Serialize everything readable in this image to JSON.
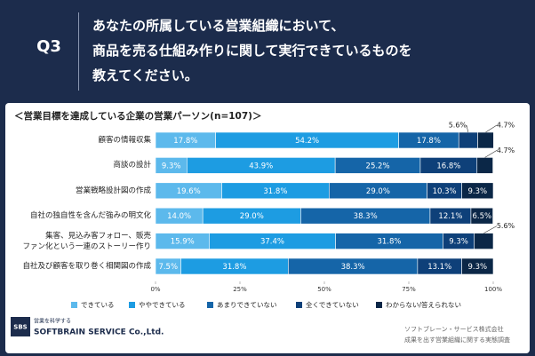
{
  "header": {
    "label": "Q3",
    "question_lines": [
      "あなたの所属している営業組織において、",
      "商品を売る仕組み作りに関して実行できているものを",
      "教えてください。"
    ]
  },
  "chart_data": {
    "type": "bar",
    "orientation": "horizontal",
    "stacked": true,
    "title": "＜営業目標を達成している企業の営業パーソン(n=107)＞",
    "categories": [
      "顧客の情報収集",
      "商談の設計",
      "営業戦略設計図の作成",
      "自社の独自性を含んだ強みの明文化",
      "集客、見込み客フォロー、販売\nファン化という一連のストーリー作り",
      "自社及び顧客を取り巻く相関図の作成"
    ],
    "series": [
      {
        "name": "できている",
        "color": "#5cb9ec",
        "values": [
          17.8,
          9.3,
          19.6,
          14.0,
          15.9,
          7.5
        ],
        "value_labels": [
          "17.8%",
          "9.3%",
          "19.6%",
          "14.0%",
          "15.9%",
          "7.5%"
        ]
      },
      {
        "name": "ややできている",
        "color": "#1d9ce2",
        "values": [
          54.2,
          43.9,
          31.8,
          29.0,
          37.4,
          31.8
        ],
        "value_labels": [
          "54.2%",
          "43.9%",
          "31.8%",
          "29.0%",
          "37.4%",
          "31.8%"
        ]
      },
      {
        "name": "あまりできていない",
        "color": "#1565a8",
        "values": [
          17.8,
          25.2,
          29.0,
          38.3,
          31.8,
          38.3
        ],
        "value_labels": [
          "17.8%",
          "25.2%",
          "29.0%",
          "38.3%",
          "31.8%",
          "38.3%"
        ]
      },
      {
        "name": "全くできていない",
        "color": "#0e4079",
        "values": [
          5.6,
          16.8,
          10.3,
          12.1,
          9.3,
          13.1
        ],
        "value_labels": [
          "5.6%",
          "16.8%",
          "10.3%",
          "12.1%",
          "9.3%",
          "13.1%"
        ]
      },
      {
        "name": "わからない/答えられない",
        "color": "#0b2747",
        "values": [
          4.7,
          4.7,
          9.3,
          6.5,
          5.6,
          9.3
        ],
        "value_labels": [
          "4.7%",
          "4.7%",
          "9.3%",
          "6.5%",
          "5.6%",
          "9.3%"
        ]
      }
    ],
    "xlim": [
      0,
      100
    ],
    "xticks": [
      {
        "value": 0,
        "label": "0%"
      },
      {
        "value": 25,
        "label": "25%"
      },
      {
        "value": 50,
        "label": "50%"
      },
      {
        "value": 75,
        "label": "75%"
      },
      {
        "value": 100,
        "label": "100%"
      }
    ]
  },
  "footer": {
    "logo_mark": "SBS",
    "logo_tagline": "営業を科学する",
    "logo_name": "SOFTBRAIN SERVICE Co.,Ltd.",
    "company": "ソフトブレーン・サービス株式会社",
    "survey": "成果を出す営業組織に関する実態調査"
  }
}
